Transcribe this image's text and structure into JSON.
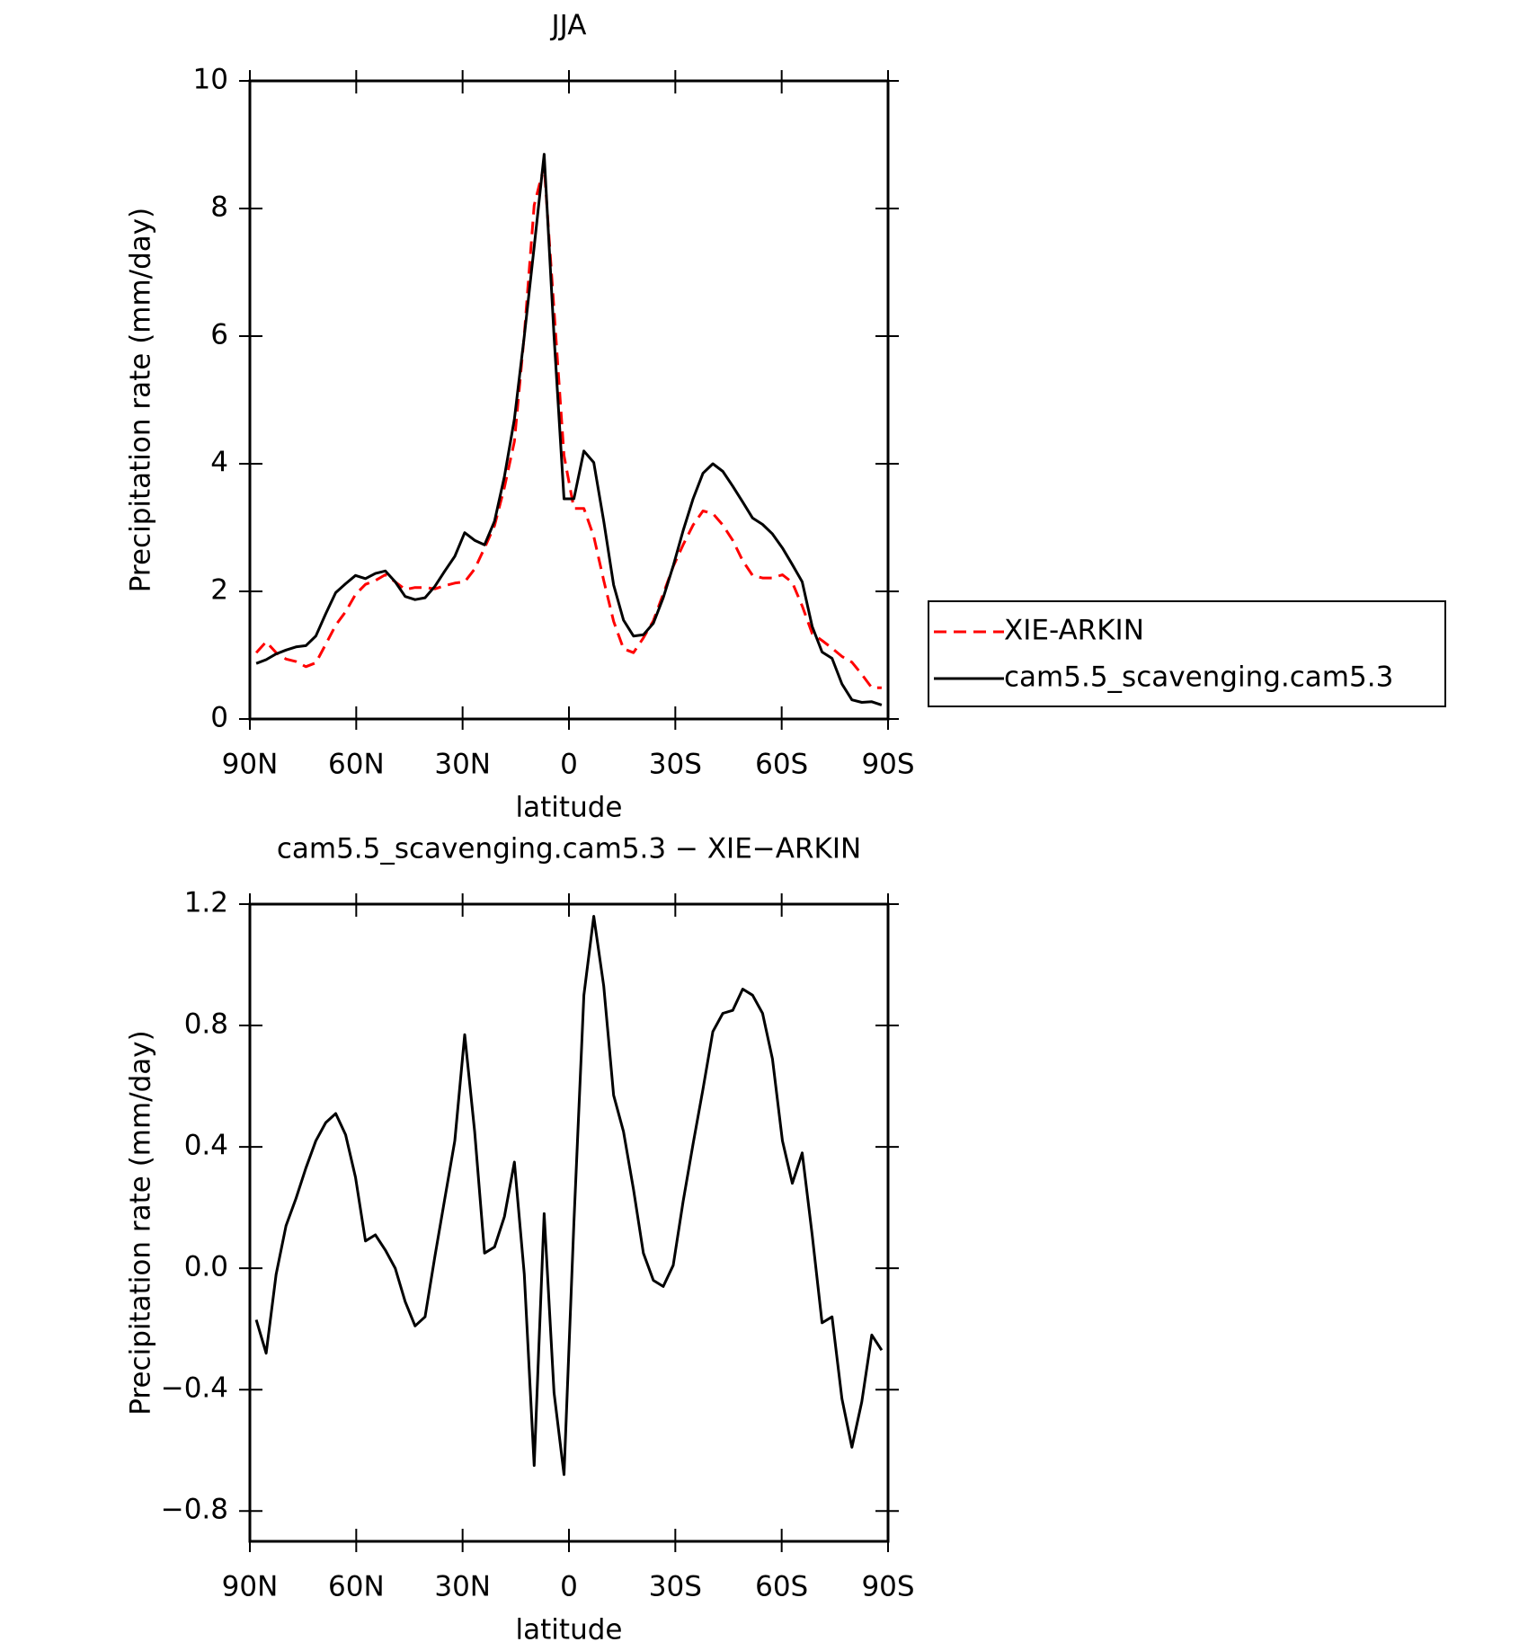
{
  "chart_data": [
    {
      "type": "line",
      "title": "JJA",
      "xlabel": "latitude",
      "ylabel": "Precipitation rate (mm/day)",
      "x": [
        88.2,
        85.4,
        82.6,
        79.8,
        77.0,
        74.2,
        71.4,
        68.6,
        65.8,
        63.0,
        60.2,
        57.4,
        54.6,
        51.8,
        49.0,
        46.2,
        43.4,
        40.6,
        37.8,
        35.0,
        32.2,
        29.4,
        26.6,
        23.8,
        21.0,
        18.2,
        15.4,
        12.6,
        9.8,
        7.0,
        4.2,
        1.4,
        -1.4,
        -4.2,
        -7.0,
        -9.8,
        -12.6,
        -15.4,
        -18.2,
        -21.0,
        -23.8,
        -26.6,
        -29.4,
        -32.2,
        -35.0,
        -37.8,
        -40.6,
        -43.4,
        -46.2,
        -49.0,
        -51.8,
        -54.6,
        -57.4,
        -60.2,
        -63.0,
        -65.8,
        -68.6,
        -71.4,
        -74.2,
        -77.0,
        -79.8,
        -82.6,
        -85.4,
        -88.2
      ],
      "series": [
        {
          "name": "XIE-ARKIN",
          "color": "#ff0000",
          "dash": true,
          "values": [
            1.04,
            1.21,
            1.04,
            0.94,
            0.9,
            0.82,
            0.88,
            1.17,
            1.47,
            1.68,
            1.95,
            2.11,
            2.17,
            2.26,
            2.15,
            2.03,
            2.06,
            2.06,
            2.04,
            2.09,
            2.13,
            2.15,
            2.35,
            2.68,
            3.03,
            3.63,
            4.35,
            6.02,
            8.05,
            8.67,
            6.41,
            4.13,
            3.3,
            3.3,
            2.86,
            2.17,
            1.53,
            1.1,
            1.04,
            1.27,
            1.54,
            1.96,
            2.39,
            2.73,
            3.04,
            3.26,
            3.22,
            3.04,
            2.8,
            2.48,
            2.25,
            2.21,
            2.21,
            2.26,
            2.14,
            1.77,
            1.34,
            1.23,
            1.11,
            0.98,
            0.89,
            0.7,
            0.49,
            0.49
          ]
        },
        {
          "name": "cam5.5_scavenging.cam5.3",
          "color": "#000000",
          "dash": false,
          "values": [
            0.87,
            0.93,
            1.02,
            1.08,
            1.13,
            1.15,
            1.3,
            1.65,
            1.98,
            2.12,
            2.25,
            2.2,
            2.28,
            2.32,
            2.15,
            1.92,
            1.87,
            1.9,
            2.08,
            2.32,
            2.55,
            2.92,
            2.8,
            2.73,
            3.1,
            3.8,
            4.7,
            6.0,
            7.4,
            8.85,
            6.0,
            3.45,
            3.45,
            4.2,
            4.02,
            3.1,
            2.1,
            1.55,
            1.3,
            1.32,
            1.5,
            1.9,
            2.4,
            2.95,
            3.45,
            3.85,
            4.0,
            3.88,
            3.65,
            3.4,
            3.15,
            3.05,
            2.9,
            2.68,
            2.42,
            2.15,
            1.45,
            1.05,
            0.95,
            0.55,
            0.3,
            0.26,
            0.27,
            0.22
          ]
        }
      ],
      "xlim": [
        90,
        -90
      ],
      "xticks": [
        {
          "value": 90,
          "label": "90N"
        },
        {
          "value": 60,
          "label": "60N"
        },
        {
          "value": 30,
          "label": "30N"
        },
        0,
        {
          "value": -30,
          "label": "30S"
        },
        {
          "value": -60,
          "label": "60S"
        },
        {
          "value": -90,
          "label": "90S"
        }
      ],
      "ylim": [
        0,
        10
      ],
      "yticks": [
        0,
        2,
        4,
        6,
        8,
        10
      ],
      "legend": "right"
    },
    {
      "type": "line",
      "title": "cam5.5_scavenging.cam5.3 − XIE−ARKIN",
      "xlabel": "latitude",
      "ylabel": "Precipitation rate (mm/day)",
      "x": [
        88.2,
        85.4,
        82.6,
        79.8,
        77.0,
        74.2,
        71.4,
        68.6,
        65.8,
        63.0,
        60.2,
        57.4,
        54.6,
        51.8,
        49.0,
        46.2,
        43.4,
        40.6,
        37.8,
        35.0,
        32.2,
        29.4,
        26.6,
        23.8,
        21.0,
        18.2,
        15.4,
        12.6,
        9.8,
        7.0,
        4.2,
        1.4,
        -1.4,
        -4.2,
        -7.0,
        -9.8,
        -12.6,
        -15.4,
        -18.2,
        -21.0,
        -23.8,
        -26.6,
        -29.4,
        -32.2,
        -35.0,
        -37.8,
        -40.6,
        -43.4,
        -46.2,
        -49.0,
        -51.8,
        -54.6,
        -57.4,
        -60.2,
        -63.0,
        -65.8,
        -68.6,
        -71.4,
        -74.2,
        -77.0,
        -79.8,
        -82.6,
        -85.4,
        -88.2
      ],
      "series": [
        {
          "color": "#000000",
          "dash": false,
          "values": [
            -0.17,
            -0.28,
            -0.02,
            0.14,
            0.23,
            0.33,
            0.42,
            0.48,
            0.51,
            0.44,
            0.3,
            0.09,
            0.11,
            0.06,
            0.0,
            -0.11,
            -0.19,
            -0.16,
            0.04,
            0.23,
            0.42,
            0.77,
            0.45,
            0.05,
            0.07,
            0.17,
            0.35,
            -0.02,
            -0.65,
            0.18,
            -0.41,
            -0.68,
            0.15,
            0.9,
            1.16,
            0.93,
            0.57,
            0.45,
            0.26,
            0.05,
            -0.04,
            -0.06,
            0.01,
            0.22,
            0.41,
            0.59,
            0.78,
            0.84,
            0.85,
            0.92,
            0.9,
            0.84,
            0.69,
            0.42,
            0.28,
            0.38,
            0.11,
            -0.18,
            -0.16,
            -0.43,
            -0.59,
            -0.44,
            -0.22,
            -0.27
          ]
        }
      ],
      "xlim": [
        90,
        -90
      ],
      "xticks": [
        {
          "value": 90,
          "label": "90N"
        },
        {
          "value": 60,
          "label": "60N"
        },
        {
          "value": 30,
          "label": "30N"
        },
        0,
        {
          "value": -30,
          "label": "30S"
        },
        {
          "value": -60,
          "label": "60S"
        },
        {
          "value": -90,
          "label": "90S"
        }
      ],
      "ylim": [
        -0.9,
        1.2
      ],
      "yticks": [
        {
          "value": -0.8,
          "label": "−0.8"
        },
        {
          "value": -0.4,
          "label": "−0.4"
        },
        {
          "value": 0,
          "label": "0.0"
        },
        0.4,
        0.8,
        1.2
      ]
    }
  ]
}
